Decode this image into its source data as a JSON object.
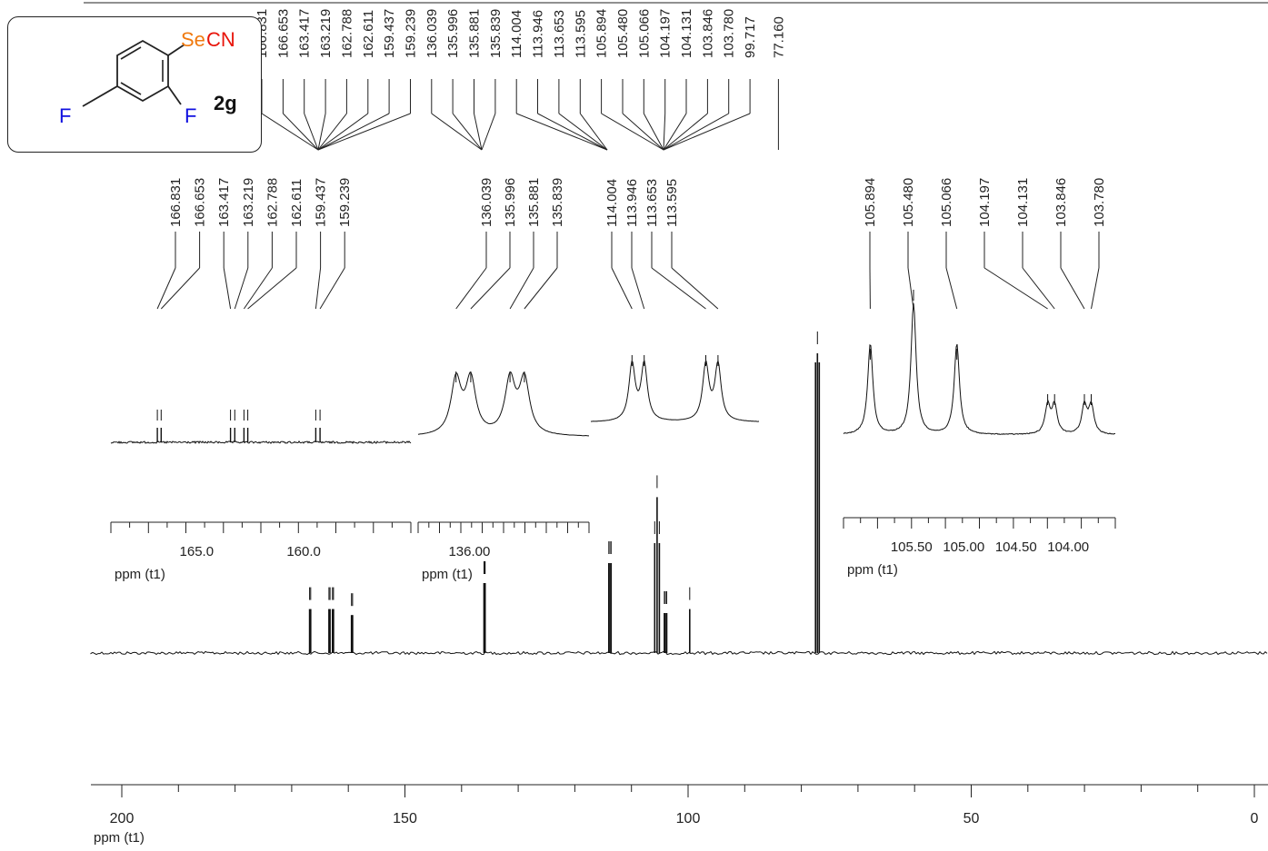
{
  "chart_data": {
    "type": "nmr_spectrum",
    "nucleus": "13C",
    "main_axis": {
      "label": "ppm (t1)",
      "range": [
        200,
        0
      ],
      "ticks": [
        "200",
        "150",
        "100",
        "50",
        "0"
      ]
    },
    "peaks": [
      {
        "ppm": 166.831,
        "height": 0.22
      },
      {
        "ppm": 166.653,
        "height": 0.22
      },
      {
        "ppm": 163.417,
        "height": 0.22
      },
      {
        "ppm": 163.219,
        "height": 0.22
      },
      {
        "ppm": 162.788,
        "height": 0.22
      },
      {
        "ppm": 162.611,
        "height": 0.22
      },
      {
        "ppm": 159.437,
        "height": 0.19
      },
      {
        "ppm": 159.239,
        "height": 0.19
      },
      {
        "ppm": 136.039,
        "height": 0.35
      },
      {
        "ppm": 135.996,
        "height": 0.35
      },
      {
        "ppm": 135.881,
        "height": 0.35
      },
      {
        "ppm": 135.839,
        "height": 0.35
      },
      {
        "ppm": 114.004,
        "height": 0.45
      },
      {
        "ppm": 113.946,
        "height": 0.45
      },
      {
        "ppm": 113.653,
        "height": 0.45
      },
      {
        "ppm": 113.595,
        "height": 0.45
      },
      {
        "ppm": 105.894,
        "height": 0.55
      },
      {
        "ppm": 105.48,
        "height": 0.78
      },
      {
        "ppm": 105.066,
        "height": 0.55
      },
      {
        "ppm": 104.197,
        "height": 0.2
      },
      {
        "ppm": 104.131,
        "height": 0.2
      },
      {
        "ppm": 103.846,
        "height": 0.2
      },
      {
        "ppm": 103.78,
        "height": 0.2
      },
      {
        "ppm": 99.717,
        "height": 0.22
      },
      {
        "ppm": 77.16,
        "height": 1.5
      }
    ],
    "top_peak_labels": [
      "166.831",
      "166.653",
      "163.417",
      "163.219",
      "162.788",
      "162.611",
      "159.437",
      "159.239",
      "136.039",
      "135.996",
      "135.881",
      "135.839",
      "114.004",
      "113.946",
      "113.653",
      "113.595",
      "105.894",
      "105.480",
      "105.066",
      "104.197",
      "104.131",
      "103.846",
      "103.780",
      "99.717",
      "77.160"
    ],
    "insets": [
      {
        "name": "inset-1",
        "range": [
          169,
          155
        ],
        "major_ticks": [
          "165.0",
          "160.0"
        ],
        "axis_label": "ppm (t1)",
        "peak_labels": [
          "166.831",
          "166.653",
          "163.417",
          "163.219",
          "162.788",
          "162.611",
          "159.437",
          "159.239"
        ],
        "peaks": [
          166.831,
          166.653,
          163.417,
          163.219,
          162.788,
          162.611,
          159.437,
          159.239
        ]
      },
      {
        "name": "inset-2",
        "range": [
          136.15,
          135.65
        ],
        "major_ticks": [
          "136.00"
        ],
        "axis_label": "ppm (t1)",
        "peak_labels": [
          "136.039",
          "135.996",
          "135.881",
          "135.839"
        ],
        "peaks": [
          136.039,
          135.996,
          135.881,
          135.839
        ]
      },
      {
        "name": "inset-3",
        "range": [
          114.2,
          113.4
        ],
        "major_ticks": [],
        "axis_label": "",
        "peak_labels": [
          "114.004",
          "113.946",
          "113.653",
          "113.595"
        ],
        "peaks": [
          114.004,
          113.946,
          113.653,
          113.595
        ]
      },
      {
        "name": "inset-4",
        "range": [
          106.15,
          103.55
        ],
        "major_ticks": [
          "105.50",
          "105.00",
          "104.50",
          "104.00"
        ],
        "axis_label": "ppm (t1)",
        "peak_labels": [
          "105.894",
          "105.480",
          "105.066",
          "104.197",
          "104.131",
          "103.846",
          "103.780"
        ],
        "peaks": [
          105.894,
          105.48,
          105.066,
          104.197,
          104.131,
          103.846,
          103.78
        ]
      }
    ]
  },
  "molecule": {
    "compound_label": "2g",
    "substituent": "SeCN",
    "substituent_colors": {
      "Se": "#f07a10",
      "CN": "#e8140a"
    },
    "fluorine_label": "F",
    "fluorine_color": "#1010e0"
  }
}
